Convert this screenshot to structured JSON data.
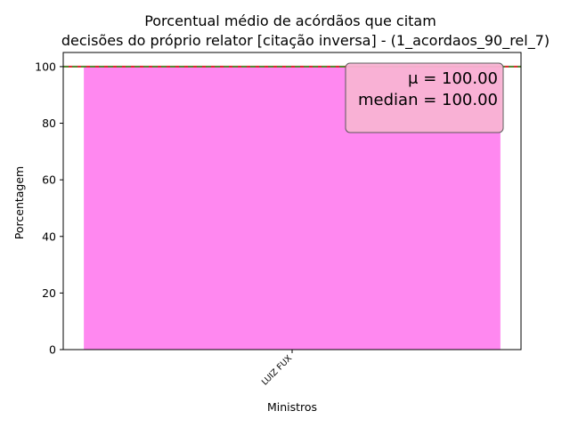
{
  "chart_data": {
    "type": "bar",
    "title_line1": "Porcentual médio de acórdãos que citam",
    "title_line2": "decisões do próprio relator [citação inversa] - (1_acordaos_90_rel_7)",
    "xlabel": "Ministros",
    "ylabel": "Porcentagem",
    "categories": [
      "LUIZ FUX"
    ],
    "values": [
      100
    ],
    "ylim": [
      0,
      105
    ],
    "yticks": [
      0,
      20,
      40,
      60,
      80,
      100
    ],
    "ytick_labels": [
      "0",
      "20",
      "40",
      "60",
      "80",
      "100"
    ],
    "bar_color": "#ff88f0",
    "mean_line_color": "#d62728",
    "median_line_color": "#2ca02c",
    "stats_box": {
      "line1": "μ = 100.00",
      "line2": "median = 100.00",
      "position": "top-right",
      "fill": "#f9b4d4"
    },
    "grid": false
  }
}
